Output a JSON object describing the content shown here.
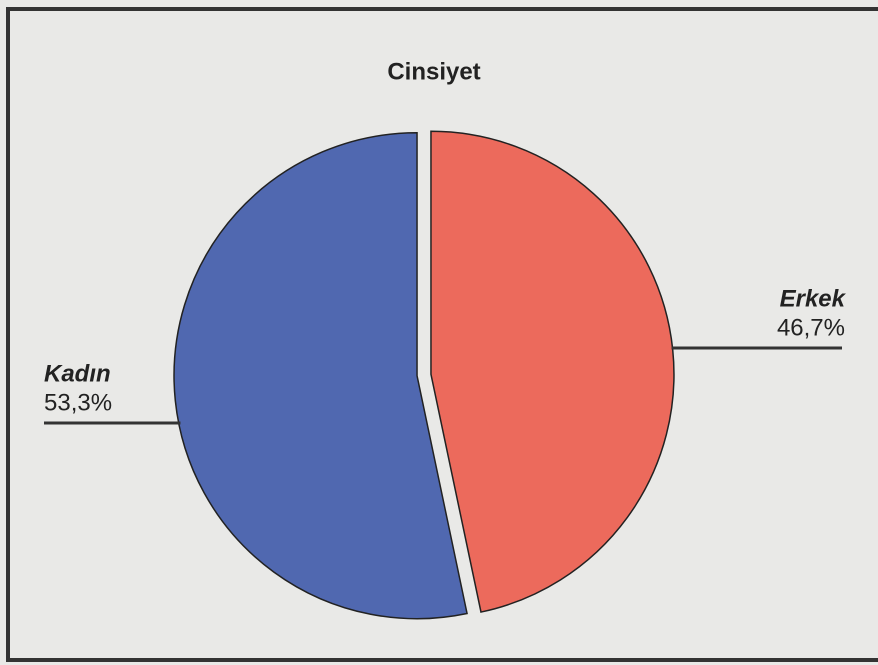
{
  "chart_data": {
    "type": "pie",
    "title": "Cinsiyet",
    "categories": [
      "Erkek",
      "Kadın"
    ],
    "values": [
      46.7,
      53.3
    ],
    "value_labels": [
      "46,7%",
      "53,3%"
    ],
    "colors": [
      "#ec6a5c",
      "#5068b0"
    ]
  }
}
